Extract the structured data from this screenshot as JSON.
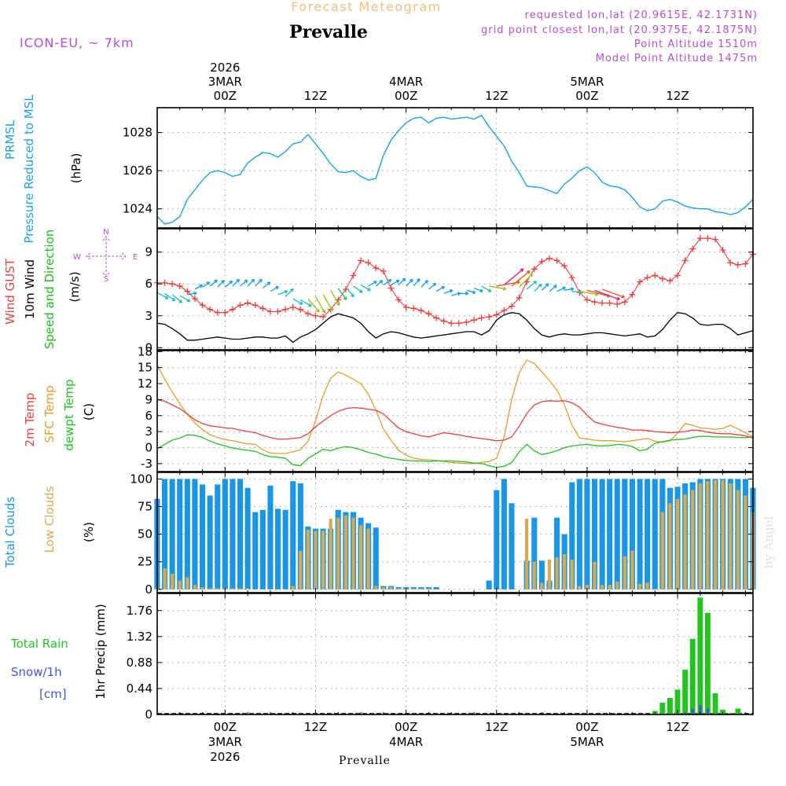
{
  "header": {
    "product": "Forecast Meteogram",
    "location": "Prevalle",
    "model": "ICON-EU, ~ 7km",
    "requested": "requested lon,lat (20.9615E, 42.1731N)",
    "grid_point": "grid point closest lon,lat (20.9375E, 42.1875N)",
    "point_altitude": "Point Altitude 1510m",
    "model_altitude": "Model Point Altitude 1475m",
    "footer": "Prevalle",
    "credit": "by Angel"
  },
  "time_axis": {
    "top_labels": [
      {
        "t": 0,
        "lines": [
          "2026",
          "3MAR",
          "00Z"
        ]
      },
      {
        "t": 12,
        "lines": [
          "12Z"
        ]
      },
      {
        "t": 24,
        "lines": [
          "4MAR",
          "00Z"
        ]
      },
      {
        "t": 36,
        "lines": [
          "12Z"
        ]
      },
      {
        "t": 48,
        "lines": [
          "5MAR",
          "00Z"
        ]
      },
      {
        "t": 60,
        "lines": [
          "12Z"
        ]
      }
    ],
    "bottom_labels": [
      {
        "t": 0,
        "lines": [
          "00Z",
          "3MAR",
          "2026"
        ]
      },
      {
        "t": 12,
        "lines": [
          "12Z"
        ]
      },
      {
        "t": 24,
        "lines": [
          "00Z",
          "4MAR"
        ]
      },
      {
        "t": 36,
        "lines": [
          "12Z"
        ]
      },
      {
        "t": 48,
        "lines": [
          "00Z",
          "5MAR"
        ]
      },
      {
        "t": 60,
        "lines": [
          "12Z"
        ]
      }
    ]
  },
  "colors": {
    "pressure": "#1ea0e6",
    "gust": "#e84040",
    "wind": "#000000",
    "dir": "#22bb22",
    "temp2m": "#e84040",
    "sfc": "#e0a030",
    "dew": "#22c022",
    "total_cloud": "#1a96e6",
    "low_cloud": "#d6aa55",
    "rain": "#22c422",
    "snow": "#4455dd",
    "purple": "#b450d0",
    "title_orange": "#f0c080"
  },
  "chart_data": [
    {
      "type": "line",
      "name": "pressure",
      "label_lines": [
        "PRMSL",
        "Pressure Reduced to MSL"
      ],
      "unit": "(hPa)",
      "ylim": [
        1023,
        1029.3
      ],
      "yticks": [
        1024,
        1026,
        1028
      ],
      "t0": -9,
      "dt": 1,
      "values": [
        1023.6,
        1023.2,
        1023.3,
        1023.6,
        1024.5,
        1025.0,
        1025.5,
        1025.9,
        1026.0,
        1025.9,
        1025.7,
        1025.8,
        1026.4,
        1026.7,
        1026.95,
        1026.9,
        1026.7,
        1027.0,
        1027.4,
        1027.5,
        1027.9,
        1027.4,
        1026.9,
        1026.35,
        1025.95,
        1025.9,
        1026.0,
        1025.7,
        1025.5,
        1025.6,
        1026.8,
        1027.6,
        1028.1,
        1028.5,
        1028.75,
        1028.8,
        1028.5,
        1028.75,
        1028.8,
        1028.7,
        1028.75,
        1028.8,
        1028.7,
        1028.9,
        1028.3,
        1027.8,
        1027.3,
        1026.5,
        1025.9,
        1025.2,
        1025.15,
        1025.1,
        1024.95,
        1024.8,
        1025.3,
        1025.6,
        1026.0,
        1026.2,
        1025.9,
        1025.4,
        1025.2,
        1025.15,
        1025.0,
        1024.6,
        1024.1,
        1023.9,
        1024.0,
        1024.4,
        1024.5,
        1024.35,
        1024.15,
        1024.05,
        1024.0,
        1024.0,
        1023.85,
        1023.8,
        1023.7,
        1023.8,
        1024.1,
        1024.5
      ]
    },
    {
      "type": "line",
      "name": "wind",
      "label_lines": [
        "Wind GUST",
        "10m Wind",
        "Speed and Direction"
      ],
      "unit": "(m/s)",
      "compass": [
        "N",
        "W",
        "E",
        "S"
      ],
      "ylim": [
        -0.2,
        11.2
      ],
      "yticks": [
        0,
        3,
        6,
        9
      ],
      "t0": -9,
      "dt": 1,
      "gust": [
        6.1,
        6.1,
        6.0,
        5.8,
        5.3,
        4.6,
        4.0,
        3.6,
        3.3,
        3.3,
        3.6,
        4.0,
        4.2,
        4.0,
        3.7,
        3.4,
        3.4,
        3.6,
        3.8,
        3.6,
        3.2,
        3.0,
        2.9,
        3.6,
        4.5,
        5.5,
        6.8,
        8.2,
        8.0,
        7.5,
        7.2,
        5.6,
        4.5,
        3.8,
        3.7,
        3.5,
        3.2,
        2.8,
        2.5,
        2.3,
        2.3,
        2.4,
        2.6,
        2.8,
        2.9,
        3.1,
        3.5,
        3.9,
        4.7,
        6.2,
        7.4,
        8.1,
        8.4,
        8.2,
        7.7,
        6.6,
        5.2,
        4.5,
        4.3,
        4.2,
        4.2,
        4.1,
        4.3,
        5.0,
        6.2,
        6.6,
        6.8,
        6.5,
        6.3,
        6.8,
        8.2,
        9.3,
        10.3,
        10.3,
        10.2,
        9.2,
        8.0,
        7.8,
        7.9,
        8.8
      ],
      "wind": [
        2.3,
        2.2,
        1.8,
        1.3,
        0.7,
        0.7,
        0.8,
        0.9,
        1.0,
        0.9,
        0.8,
        0.8,
        0.9,
        1.0,
        1.0,
        0.9,
        0.9,
        1.1,
        0.5,
        1.0,
        1.3,
        1.7,
        2.3,
        2.9,
        3.2,
        3.0,
        2.8,
        2.3,
        1.5,
        0.9,
        1.3,
        1.5,
        1.4,
        1.2,
        1.0,
        0.9,
        1.0,
        1.1,
        1.2,
        1.3,
        1.4,
        1.5,
        1.5,
        1.2,
        1.6,
        2.6,
        3.1,
        3.3,
        3.2,
        2.6,
        1.8,
        1.2,
        1.0,
        1.2,
        1.3,
        1.2,
        1.2,
        1.3,
        1.4,
        1.4,
        1.3,
        1.2,
        1.1,
        1.2,
        1.3,
        1.0,
        1.1,
        1.7,
        2.6,
        3.3,
        3.2,
        2.8,
        2.2,
        2.1,
        2.2,
        2.2,
        1.8,
        1.2,
        1.4,
        1.6
      ],
      "arrow_value": [
        5.2,
        5.1,
        5.0,
        4.9,
        5.0,
        5.5,
        5.7,
        5.8,
        5.7,
        5.7,
        5.8,
        5.8,
        5.8,
        5.8,
        5.6,
        5.3,
        5.0,
        4.8,
        4.6,
        4.5,
        4.6,
        4.8,
        5.0,
        5.4,
        5.6,
        5.7,
        5.8,
        5.9,
        5.8,
        5.8,
        5.9,
        5.9,
        5.9,
        5.8,
        5.8,
        5.7,
        5.5,
        5.3,
        5.1,
        4.9,
        5.1,
        5.4,
        5.6,
        5.8,
        5.8,
        5.8,
        5.9,
        5.8,
        5.7,
        5.5,
        5.3,
        5.4,
        5.3,
        5.3,
        5.4,
        5.3,
        5.3,
        5.4,
        5.4,
        5.5
      ],
      "arrow_dir_deg": [
        300,
        305,
        310,
        300,
        260,
        240,
        235,
        230,
        225,
        230,
        225,
        230,
        225,
        225,
        230,
        240,
        250,
        225,
        300,
        300,
        320,
        330,
        330,
        330,
        325,
        320,
        305,
        300,
        240,
        230,
        235,
        240,
        225,
        225,
        220,
        225,
        230,
        240,
        250,
        255,
        270,
        285,
        290,
        300,
        280,
        260,
        230,
        230,
        225,
        230,
        225,
        225,
        230,
        245,
        260,
        275,
        280,
        285,
        290,
        290
      ],
      "arrow_len": [
        16,
        16,
        16,
        15,
        12,
        11,
        11,
        12,
        12,
        12,
        12,
        12,
        12,
        12,
        12,
        12,
        13,
        14,
        14,
        16,
        22,
        24,
        24,
        22,
        18,
        16,
        14,
        14,
        12,
        11,
        12,
        12,
        12,
        12,
        12,
        12,
        12,
        12,
        12,
        12,
        12,
        12,
        12,
        14,
        22,
        30,
        32,
        30,
        24,
        16,
        13,
        12,
        12,
        12,
        12,
        14,
        24,
        30,
        34,
        30
      ]
    },
    {
      "type": "line",
      "name": "temperature",
      "label_lines": [
        "2m Temp",
        "SFC Temp",
        "dewpt Temp"
      ],
      "unit": "(C)",
      "ylim": [
        -4.5,
        18.2
      ],
      "yticks": [
        -3,
        0,
        3,
        6,
        9,
        12,
        15,
        18
      ],
      "t0": -9,
      "dt": 1,
      "temp_2m": [
        9.0,
        8.7,
        8.0,
        7.3,
        6.3,
        5.2,
        4.5,
        4.1,
        3.9,
        3.7,
        3.6,
        3.3,
        3.0,
        2.8,
        2.3,
        1.9,
        1.6,
        1.6,
        1.7,
        1.9,
        2.6,
        3.9,
        5.0,
        6.0,
        6.8,
        7.3,
        7.5,
        7.4,
        7.2,
        7.0,
        6.3,
        5.0,
        3.7,
        3.0,
        2.6,
        2.2,
        2.0,
        2.4,
        2.8,
        2.6,
        2.4,
        2.1,
        1.9,
        1.7,
        1.5,
        1.3,
        1.4,
        2.0,
        4.0,
        6.4,
        8.0,
        8.6,
        8.8,
        8.7,
        8.8,
        8.4,
        7.6,
        6.1,
        4.8,
        4.4,
        4.1,
        3.8,
        3.6,
        3.3,
        3.3,
        3.2,
        3.0,
        2.9,
        2.8,
        2.9,
        3.0,
        3.3,
        3.2,
        2.9,
        2.7,
        2.6,
        2.6,
        2.4,
        2.2,
        1.8
      ],
      "sfc": [
        15.5,
        12.8,
        10.4,
        8.2,
        6.2,
        4.6,
        3.4,
        2.4,
        1.9,
        1.5,
        1.3,
        1.0,
        0.7,
        0.6,
        -0.4,
        -1.0,
        -1.1,
        -1.1,
        -0.8,
        -0.4,
        1.2,
        5.0,
        9.8,
        13.0,
        14.2,
        13.6,
        12.8,
        12.0,
        10.0,
        7.0,
        3.5,
        1.4,
        -0.5,
        -1.4,
        -2.0,
        -2.2,
        -2.3,
        -2.4,
        -2.6,
        -2.8,
        -2.9,
        -3.0,
        -3.0,
        -2.8,
        -2.6,
        -2.0,
        2.0,
        9.0,
        14.0,
        16.4,
        15.8,
        14.2,
        12.6,
        10.8,
        8.0,
        4.2,
        1.8,
        1.6,
        1.4,
        1.3,
        1.3,
        1.2,
        1.1,
        1.3,
        1.5,
        1.7,
        1.2,
        1.0,
        1.3,
        2.7,
        4.5,
        4.2,
        3.7,
        3.6,
        3.4,
        3.6,
        4.2,
        3.5,
        2.8,
        2.0
      ],
      "dewpoint": [
        -0.2,
        0.6,
        1.4,
        1.8,
        2.4,
        2.3,
        1.9,
        1.2,
        0.7,
        0.3,
        -0.1,
        -0.3,
        -0.5,
        -0.7,
        -1.3,
        -1.7,
        -1.8,
        -2.0,
        -3.2,
        -3.4,
        -2.0,
        -1.2,
        -0.3,
        -0.6,
        -0.1,
        0.2,
        0.0,
        -0.4,
        -0.9,
        -1.2,
        -1.7,
        -2.0,
        -2.2,
        -2.4,
        -2.5,
        -2.5,
        -2.6,
        -2.5,
        -2.5,
        -2.5,
        -2.6,
        -2.7,
        -2.9,
        -3.0,
        -3.4,
        -3.7,
        -3.5,
        -2.8,
        -0.8,
        0.6,
        -0.6,
        -1.3,
        -1.0,
        -0.6,
        0.0,
        0.3,
        0.5,
        0.6,
        0.4,
        0.3,
        0.4,
        0.6,
        0.5,
        0.2,
        -0.6,
        -0.3,
        0.8,
        1.1,
        1.4,
        1.5,
        1.6,
        1.9,
        2.1,
        2.1,
        2.0,
        2.0,
        2.0,
        1.9,
        1.9,
        2.0
      ]
    },
    {
      "type": "bar",
      "name": "clouds",
      "label_lines": [
        "Total Clouds",
        "Low Clouds"
      ],
      "unit": "(%)",
      "ylim": [
        -3,
        106
      ],
      "yticks": [
        0,
        25,
        50,
        75,
        100
      ],
      "t0": -9,
      "dt": 1,
      "total": [
        82,
        100,
        100,
        100,
        100,
        100,
        95,
        85,
        95,
        100,
        100,
        100,
        92,
        70,
        72,
        94,
        73,
        72,
        98,
        96,
        57,
        55,
        55,
        55,
        72,
        70,
        70,
        65,
        60,
        56,
        3,
        3,
        2,
        2,
        2,
        2,
        2,
        2,
        0,
        0,
        0,
        0,
        0,
        0,
        8,
        90,
        100,
        78,
        0,
        26,
        65,
        26,
        8,
        65,
        50,
        97,
        100,
        100,
        100,
        100,
        100,
        100,
        100,
        100,
        100,
        100,
        100,
        100,
        92,
        93,
        96,
        97,
        100,
        100,
        100,
        100,
        100,
        100,
        100,
        92
      ],
      "low": [
        2,
        19,
        14,
        8,
        11,
        4,
        2,
        1,
        1,
        1,
        1,
        1,
        1,
        0,
        0,
        0,
        0,
        0,
        3,
        35,
        54,
        53,
        53,
        64,
        65,
        67,
        65,
        58,
        55,
        3,
        2,
        2,
        1,
        1,
        1,
        1,
        1,
        0,
        0,
        0,
        0,
        0,
        0,
        0,
        0,
        0,
        0,
        0,
        0,
        64,
        25,
        6,
        27,
        29,
        32,
        27,
        3,
        4,
        25,
        4,
        4,
        7,
        30,
        35,
        5,
        6,
        0,
        70,
        78,
        82,
        86,
        90,
        96,
        98,
        99,
        99,
        96,
        90,
        85,
        70
      ]
    },
    {
      "type": "bar",
      "name": "precipitation",
      "label_lines": [
        "Total  Rain",
        "Snow/1h",
        "[cm]"
      ],
      "axis_label": "1hr Precip (mm)",
      "ylim": [
        0,
        2.05
      ],
      "yticks": [
        0,
        0.44,
        0.88,
        1.32,
        1.76
      ],
      "t0": -9,
      "dt": 1,
      "rain": [
        0,
        0,
        0,
        0,
        0,
        0,
        0,
        0,
        0,
        0,
        0,
        0,
        0,
        0,
        0,
        0,
        0,
        0,
        0,
        0,
        0,
        0,
        0,
        0,
        0,
        0,
        0,
        0,
        0,
        0,
        0,
        0,
        0,
        0,
        0,
        0,
        0,
        0,
        0,
        0,
        0,
        0,
        0,
        0,
        0,
        0,
        0,
        0,
        0,
        0,
        0,
        0,
        0,
        0,
        0,
        0,
        0,
        0,
        0,
        0,
        0,
        0,
        0,
        0,
        0,
        0,
        0.06,
        0.2,
        0.28,
        0.42,
        0.76,
        1.28,
        1.98,
        1.72,
        0.36,
        0.08,
        0.02,
        0.1,
        0,
        0
      ],
      "snow": [
        0,
        0,
        0,
        0,
        0,
        0,
        0,
        0,
        0,
        0,
        0,
        0,
        0,
        0,
        0,
        0,
        0,
        0,
        0,
        0,
        0,
        0,
        0,
        0,
        0,
        0,
        0,
        0,
        0,
        0,
        0,
        0,
        0,
        0,
        0,
        0,
        0,
        0,
        0,
        0,
        0,
        0,
        0,
        0,
        0,
        0,
        0,
        0,
        0,
        0,
        0,
        0,
        0,
        0,
        0,
        0,
        0,
        0,
        0,
        0,
        0,
        0,
        0,
        0,
        0,
        0,
        0,
        0,
        0,
        0,
        0.04,
        0.1,
        0.16,
        0.1,
        0,
        0,
        0,
        0,
        0,
        0
      ]
    }
  ]
}
